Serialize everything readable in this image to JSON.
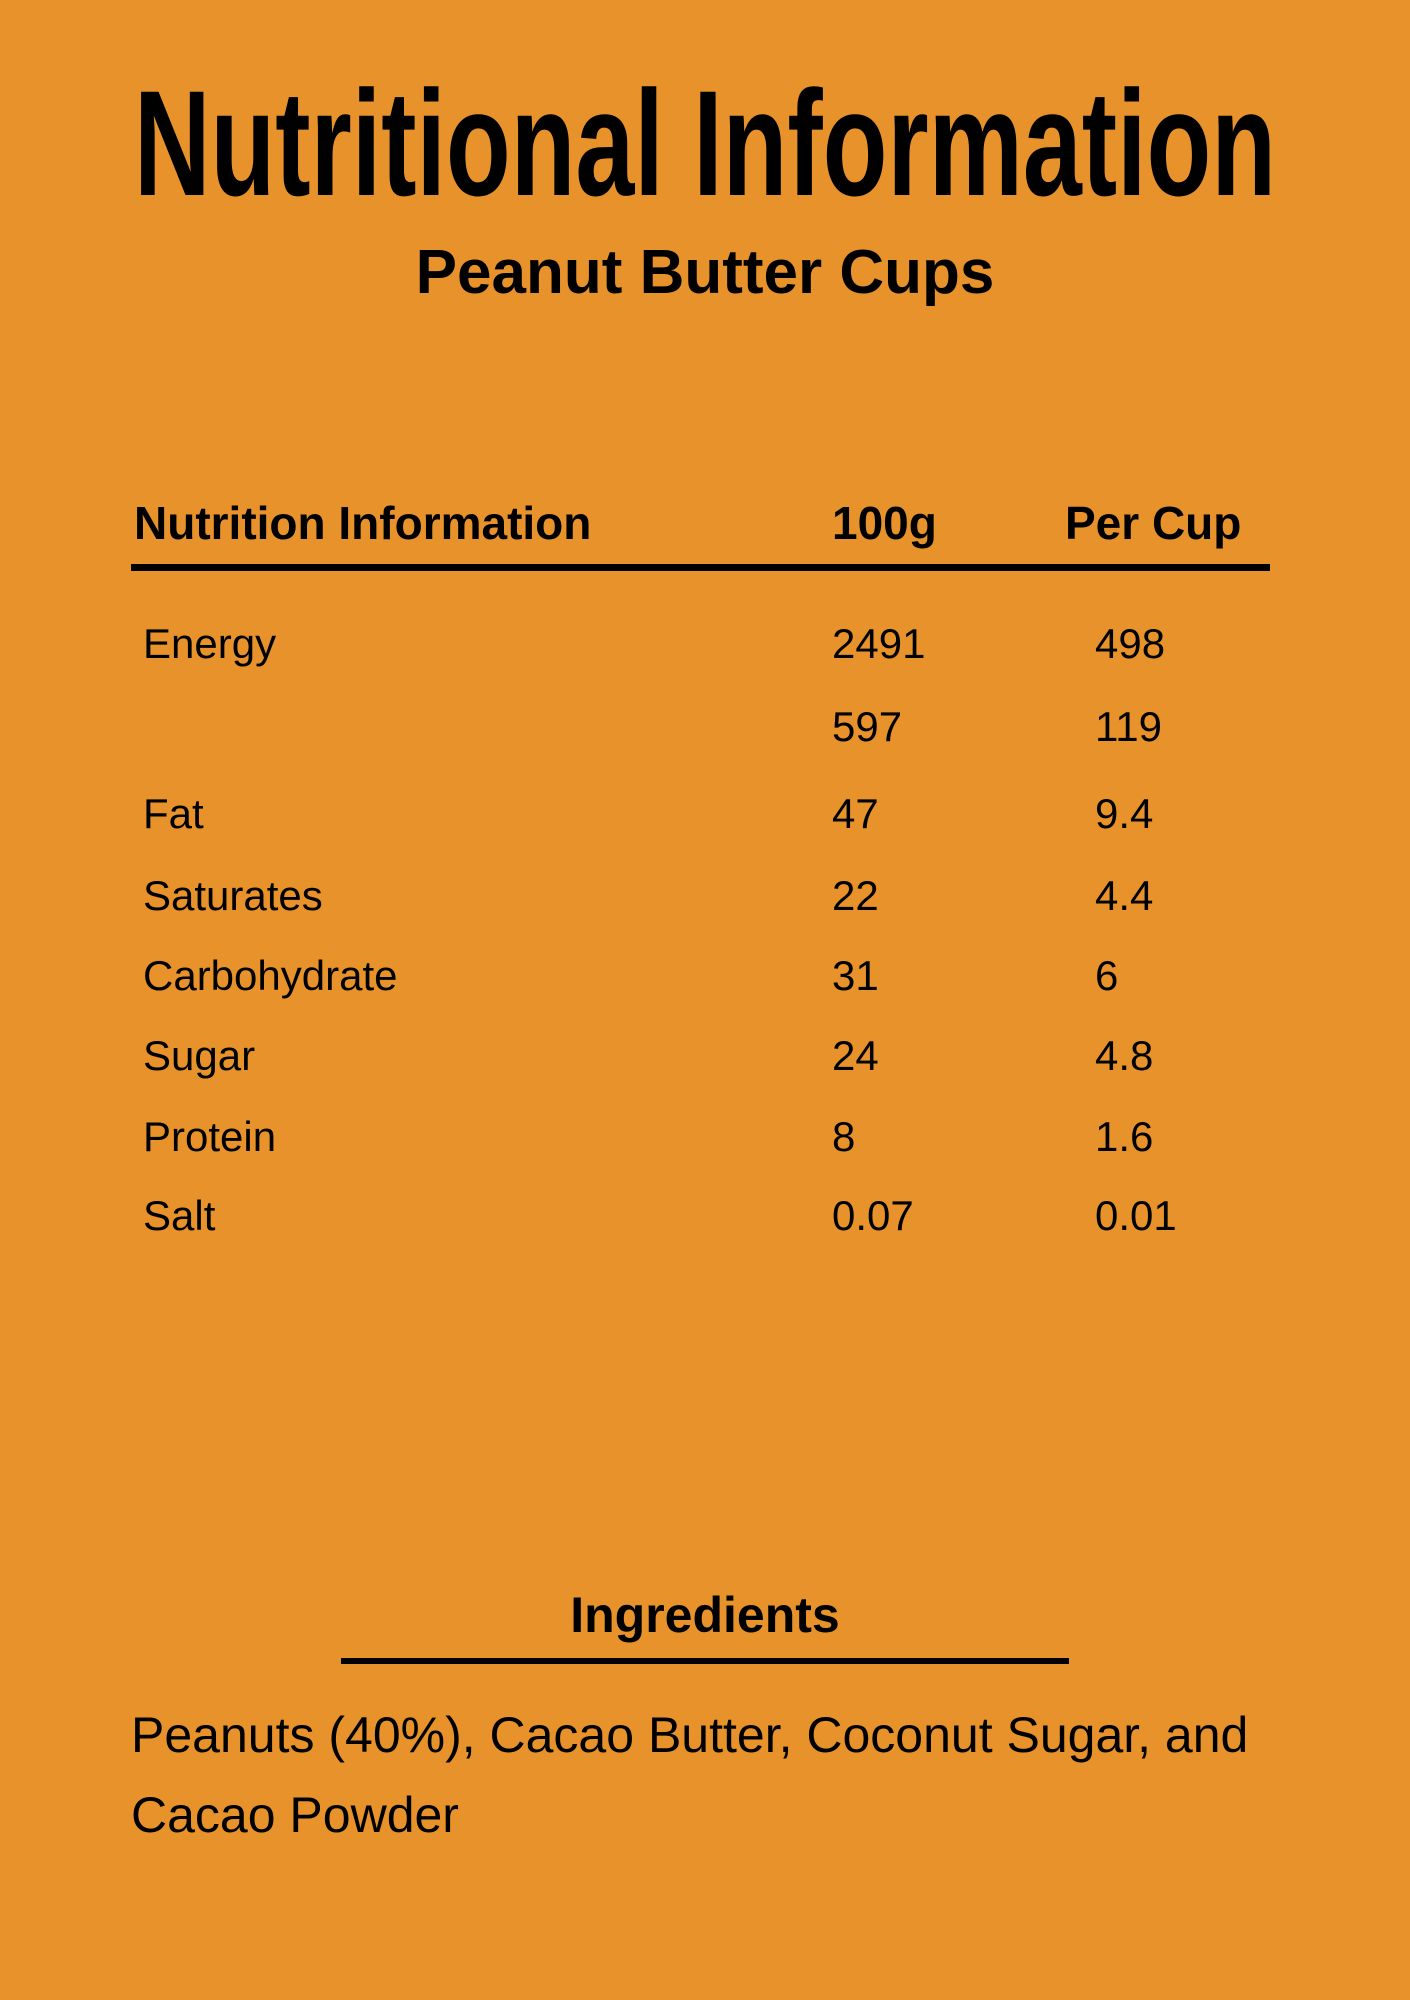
{
  "title": "Nutritional Information",
  "subtitle": "Peanut Butter Cups",
  "table": {
    "headers": [
      "Nutrition Information",
      "100g",
      "Per Cup"
    ],
    "rows": [
      {
        "label": "Energy",
        "per_100g": "2491",
        "per_cup": "498"
      },
      {
        "label": "",
        "per_100g": "597",
        "per_cup": "119"
      },
      {
        "label": "Fat",
        "per_100g": "47",
        "per_cup": "9.4"
      },
      {
        "label": "Saturates",
        "per_100g": "22",
        "per_cup": "4.4"
      },
      {
        "label": "Carbohydrate",
        "per_100g": "31",
        "per_cup": "6"
      },
      {
        "label": "Sugar",
        "per_100g": "24",
        "per_cup": "4.8"
      },
      {
        "label": "Protein",
        "per_100g": "8",
        "per_cup": "1.6"
      },
      {
        "label": "Salt",
        "per_100g": "0.07",
        "per_cup": "0.01"
      }
    ]
  },
  "ingredients": {
    "heading": "Ingredients",
    "text": "Peanuts (40%), Cacao Butter, Coconut Sugar, and Cacao Powder"
  },
  "colors": {
    "background": "#E8922B",
    "text": "#000000"
  }
}
